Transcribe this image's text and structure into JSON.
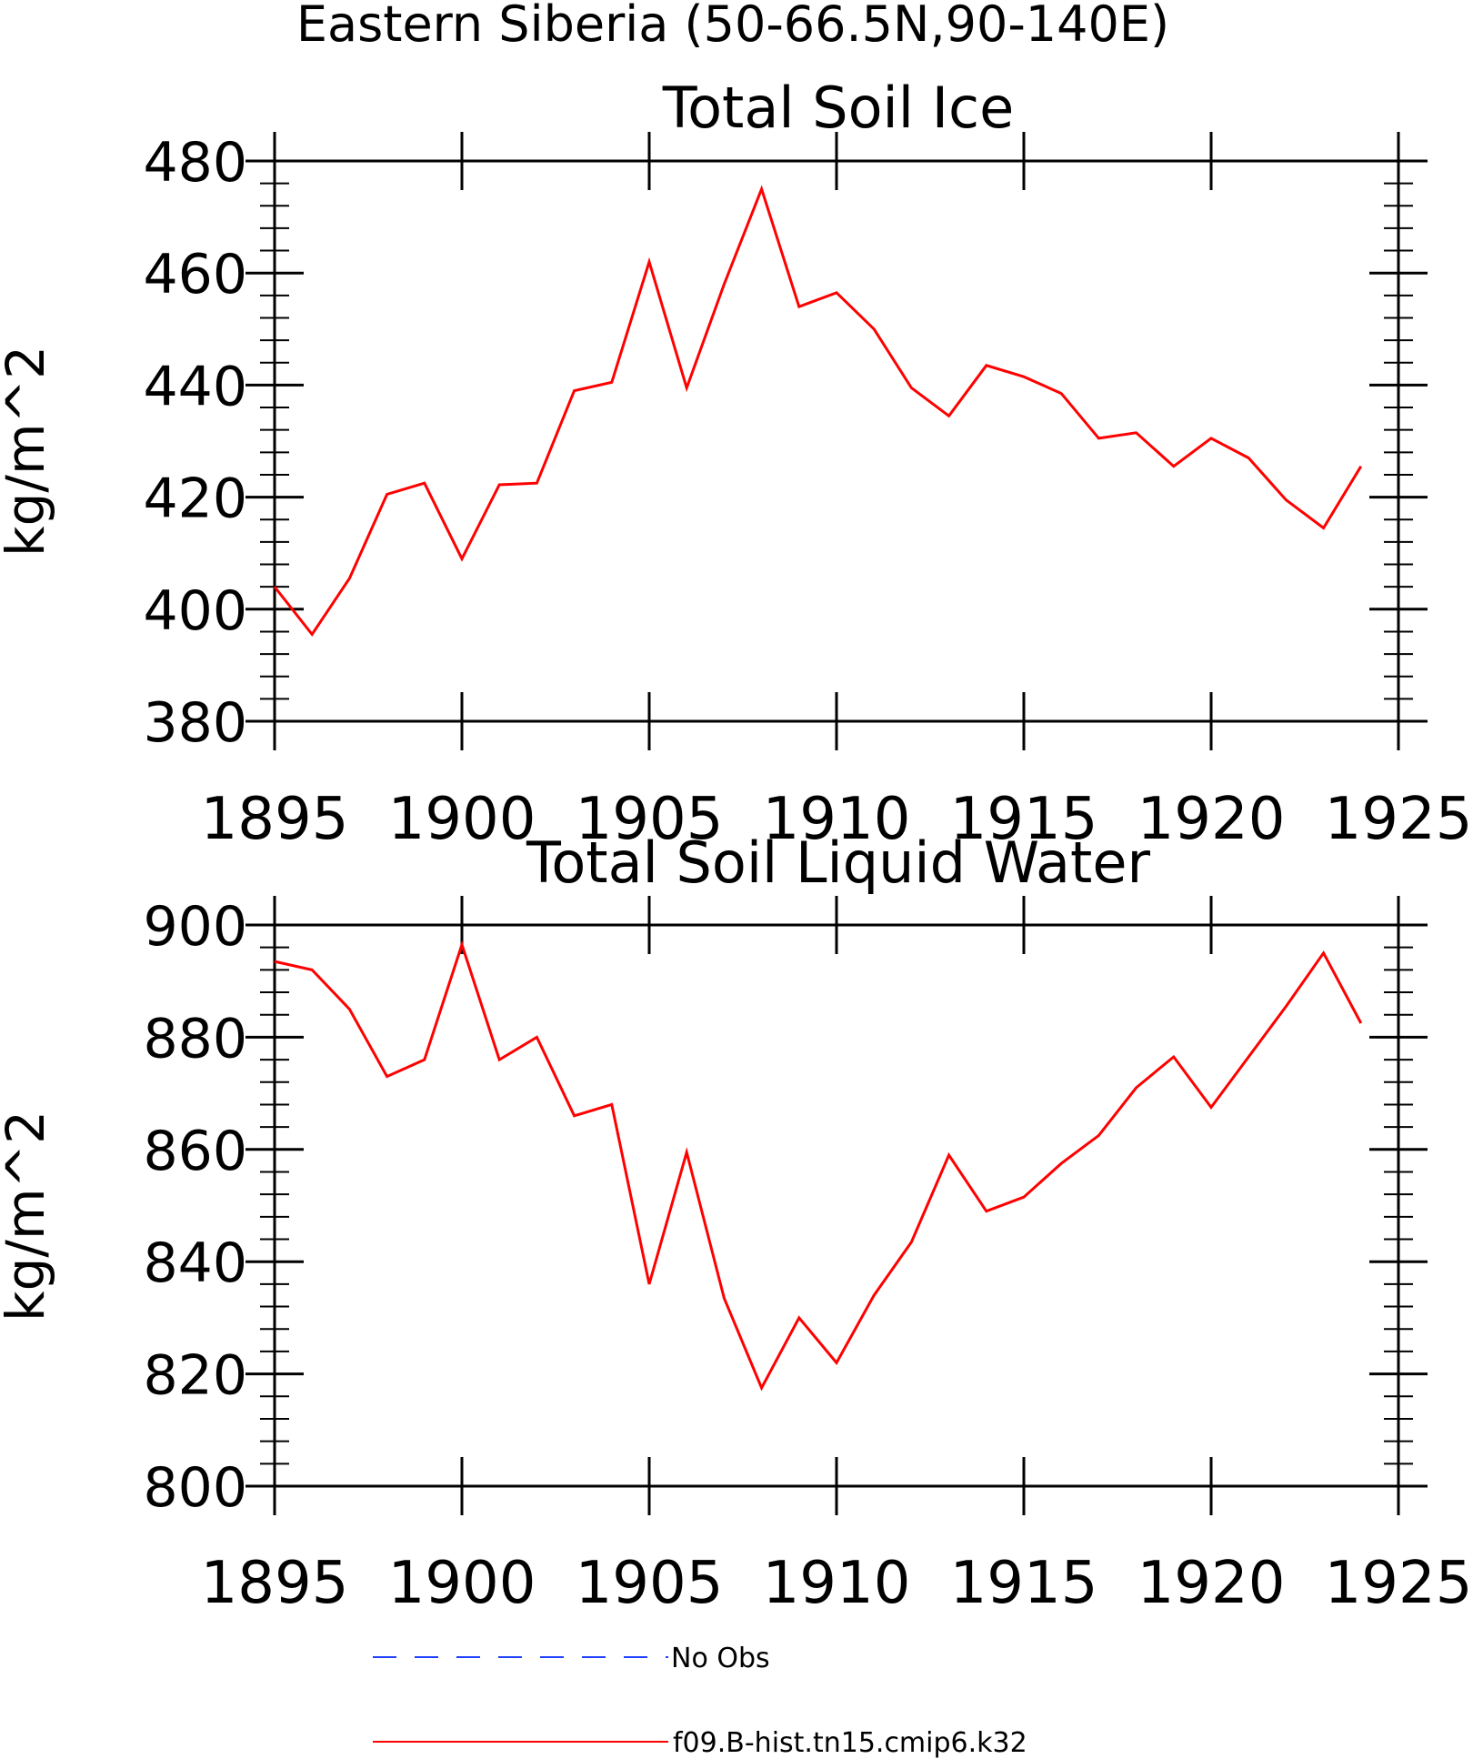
{
  "page_title": "Eastern Siberia (50-66.5N,90-140E)",
  "legend": {
    "items": [
      {
        "label": "No Obs",
        "color": "#1f3fff",
        "dash": true
      },
      {
        "label": "f09.B-hist.tn15.cmip6.k32",
        "color": "#ff0000",
        "dash": false
      }
    ]
  },
  "chart_data": [
    {
      "type": "line",
      "title": "Total Soil Ice",
      "xlabel": "",
      "ylabel": "kg/m^2",
      "xlim": [
        1895,
        1925
      ],
      "ylim": [
        380,
        480
      ],
      "x_ticks": [
        1895,
        1900,
        1905,
        1910,
        1915,
        1920,
        1925
      ],
      "x_tick_labels": [
        "1895",
        "1900",
        "1905",
        "1910",
        "1915",
        "1920",
        "1925"
      ],
      "y_ticks": [
        380,
        400,
        420,
        440,
        460,
        480
      ],
      "y_tick_labels": [
        "380",
        "400",
        "420",
        "440",
        "460",
        "480"
      ],
      "grid": false,
      "series": [
        {
          "name": "f09.B-hist.tn15.cmip6.k32",
          "color": "#ff0000",
          "x": [
            1895,
            1896,
            1897,
            1898,
            1899,
            1900,
            1901,
            1902,
            1903,
            1904,
            1905,
            1906,
            1907,
            1908,
            1909,
            1910,
            1911,
            1912,
            1913,
            1914,
            1915,
            1916,
            1917,
            1918,
            1919,
            1920,
            1921,
            1922,
            1923,
            1924
          ],
          "y": [
            404,
            395.5,
            405.5,
            420.5,
            422.5,
            409,
            422.2,
            422.5,
            439,
            440.5,
            462,
            439.5,
            458,
            475,
            454,
            456.5,
            450,
            439.5,
            434.5,
            443.5,
            441.5,
            438.5,
            430.5,
            431.5,
            425.5,
            430.5,
            427,
            419.5,
            414.5,
            425.5
          ]
        }
      ]
    },
    {
      "type": "line",
      "title": "Total Soil Liquid Water",
      "xlabel": "",
      "ylabel": "kg/m^2",
      "xlim": [
        1895,
        1925
      ],
      "ylim": [
        800,
        900
      ],
      "x_ticks": [
        1895,
        1900,
        1905,
        1910,
        1915,
        1920,
        1925
      ],
      "x_tick_labels": [
        "1895",
        "1900",
        "1905",
        "1910",
        "1915",
        "1920",
        "1925"
      ],
      "y_ticks": [
        800,
        820,
        840,
        860,
        880,
        900
      ],
      "y_tick_labels": [
        "800",
        "820",
        "840",
        "860",
        "880",
        "900"
      ],
      "grid": false,
      "series": [
        {
          "name": "f09.B-hist.tn15.cmip6.k32",
          "color": "#ff0000",
          "x": [
            1895,
            1896,
            1897,
            1898,
            1899,
            1900,
            1901,
            1902,
            1903,
            1904,
            1905,
            1906,
            1907,
            1908,
            1909,
            1910,
            1911,
            1912,
            1913,
            1914,
            1915,
            1916,
            1917,
            1918,
            1919,
            1920,
            1921,
            1922,
            1923,
            1924
          ],
          "y": [
            893.5,
            892,
            885,
            873,
            876,
            896.5,
            876,
            880,
            866,
            868,
            836,
            859.5,
            833.5,
            817.5,
            830,
            822,
            834,
            843.5,
            859,
            849,
            851.5,
            857.5,
            862.5,
            871,
            876.5,
            867.5,
            876.5,
            885.5,
            895,
            882.5
          ]
        }
      ]
    }
  ]
}
